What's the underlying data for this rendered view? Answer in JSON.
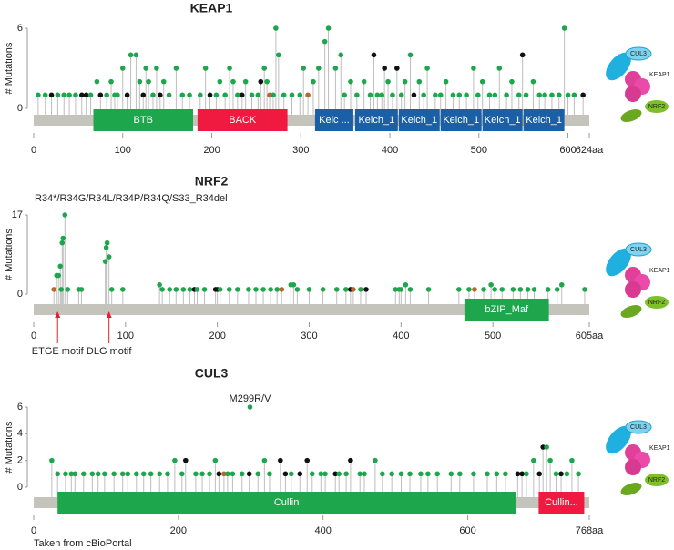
{
  "chart_data": [
    {
      "type": "lollipop",
      "title": "KEAP1",
      "ylabel": "# Mutations",
      "ylim": [
        0,
        6
      ],
      "yticks": [
        0,
        6
      ],
      "xlim": [
        0,
        624
      ],
      "xticks": [
        0,
        100,
        200,
        300,
        400,
        500,
        600,
        {
          "value": 624,
          "label": "624aa"
        }
      ],
      "domains": [
        {
          "name": "BTB",
          "start": 67,
          "end": 179,
          "color": "#1ea64c"
        },
        {
          "name": "BACK",
          "start": 184,
          "end": 285,
          "color": "#f0193f"
        },
        {
          "name": "Kelc ...",
          "start": 316,
          "end": 359,
          "color": "#1b5fa6"
        },
        {
          "name": "Kelch_1",
          "start": 361,
          "end": 409,
          "color": "#1b5fa6"
        },
        {
          "name": "Kelch_1",
          "start": 410,
          "end": 456,
          "color": "#1b5fa6"
        },
        {
          "name": "Kelch_1",
          "start": 457,
          "end": 503,
          "color": "#1b5fa6"
        },
        {
          "name": "Kelch_1",
          "start": 504,
          "end": 549,
          "color": "#1b5fa6"
        },
        {
          "name": "Kelch_1",
          "start": 550,
          "end": 596,
          "color": "#1b5fa6"
        }
      ],
      "x": [
        5,
        13,
        20,
        27,
        34,
        40,
        47,
        54,
        59,
        64,
        71,
        75,
        82,
        87,
        91,
        94,
        100,
        105,
        109,
        115,
        119,
        123,
        126,
        129,
        134,
        138,
        142,
        146,
        152,
        160,
        167,
        175,
        187,
        193,
        198,
        205,
        209,
        215,
        220,
        224,
        229,
        234,
        238,
        245,
        252,
        255,
        259,
        262,
        265,
        269,
        272,
        275,
        281,
        290,
        299,
        303,
        308,
        314,
        320,
        327,
        331,
        339,
        345,
        349,
        356,
        363,
        371,
        378,
        382,
        386,
        391,
        394,
        398,
        403,
        408,
        413,
        417,
        423,
        427,
        433,
        438,
        442,
        451,
        457,
        463,
        471,
        478,
        486,
        494,
        499,
        504,
        512,
        518,
        523,
        531,
        537,
        545,
        549,
        553,
        561,
        568,
        574,
        582,
        590,
        596,
        600,
        607,
        617
      ],
      "values": [
        1,
        1,
        1,
        1,
        1,
        1,
        1,
        1,
        1,
        1,
        2,
        1,
        1,
        2,
        1,
        1,
        3,
        1,
        4,
        4,
        2,
        1,
        3,
        2,
        1,
        3,
        1,
        2,
        1,
        3,
        1,
        1,
        1,
        3,
        1,
        1,
        2,
        1,
        3,
        2,
        1,
        1,
        2,
        1,
        1,
        2,
        3,
        2,
        1,
        1,
        6,
        4,
        1,
        1,
        1,
        3,
        1,
        2,
        3,
        5,
        6,
        3,
        4,
        1,
        2,
        1,
        2,
        1,
        4,
        1,
        1,
        3,
        2,
        1,
        3,
        1,
        2,
        4,
        1,
        2,
        1,
        3,
        1,
        1,
        2,
        1,
        1,
        1,
        3,
        1,
        2,
        1,
        1,
        3,
        1,
        2,
        1,
        4,
        1,
        2,
        1,
        1,
        1,
        1,
        6,
        1,
        1,
        1
      ],
      "colors": [
        "#1ea64c",
        "#1ea64c",
        "#111111",
        "#1ea64c",
        "#1ea64c",
        "#1ea64c",
        "#1ea64c",
        "#111111",
        "#111111",
        "#1ea64c",
        "#1ea64c",
        "#111111",
        "#1ea64c",
        "#1ea64c",
        "#1ea64c",
        "#1ea64c",
        "#1ea64c",
        "#111111",
        "#1ea64c",
        "#1ea64c",
        "#1ea64c",
        "#111111",
        "#1ea64c",
        "#1ea64c",
        "#1ea64c",
        "#1ea64c",
        "#111111",
        "#1ea64c",
        "#1ea64c",
        "#1ea64c",
        "#1ea64c",
        "#1ea64c",
        "#1ea64c",
        "#1ea64c",
        "#111111",
        "#1ea64c",
        "#1ea64c",
        "#1ea64c",
        "#1ea64c",
        "#1ea64c",
        "#1ea64c",
        "#111111",
        "#1ea64c",
        "#1ea64c",
        "#1ea64c",
        "#111111",
        "#1ea64c",
        "#1ea64c",
        "#b8662a",
        "#1ea64c",
        "#1ea64c",
        "#1ea64c",
        "#1ea64c",
        "#1ea64c",
        "#1ea64c",
        "#1ea64c",
        "#b8662a",
        "#1ea64c",
        "#1ea64c",
        "#1ea64c",
        "#1ea64c",
        "#1ea64c",
        "#1ea64c",
        "#1ea64c",
        "#1ea64c",
        "#1ea64c",
        "#1ea64c",
        "#1ea64c",
        "#111111",
        "#1ea64c",
        "#1ea64c",
        "#111111",
        "#1ea64c",
        "#1ea64c",
        "#111111",
        "#1ea64c",
        "#1ea64c",
        "#1ea64c",
        "#111111",
        "#1ea64c",
        "#1ea64c",
        "#1ea64c",
        "#1ea64c",
        "#1ea64c",
        "#1ea64c",
        "#1ea64c",
        "#1ea64c",
        "#1ea64c",
        "#1ea64c",
        "#1ea64c",
        "#1ea64c",
        "#1ea64c",
        "#1ea64c",
        "#1ea64c",
        "#1ea64c",
        "#1ea64c",
        "#1ea64c",
        "#111111",
        "#1ea64c",
        "#1ea64c",
        "#1ea64c",
        "#1ea64c",
        "#1ea64c",
        "#1ea64c",
        "#1ea64c",
        "#1ea64c",
        "#1ea64c",
        "#111111"
      ],
      "icon_labels": [
        "CUL3",
        "KEAP1",
        "NRF2"
      ]
    },
    {
      "type": "lollipop",
      "title": "NRF2",
      "ylabel": "# Mutations",
      "ylim": [
        0,
        17
      ],
      "yticks": [
        0,
        17
      ],
      "xlim": [
        0,
        605
      ],
      "xticks": [
        0,
        100,
        200,
        300,
        400,
        500,
        {
          "value": 605,
          "label": "605aa"
        }
      ],
      "annotation": "R34*/R34G/R34L/R34P/R34Q/S33_R34del",
      "motifs": [
        {
          "text": "ETGE motif",
          "x": 26
        },
        {
          "text": "DLG motif",
          "x": 82
        }
      ],
      "domains": [
        {
          "name": "bZIP_Maf",
          "start": 469,
          "end": 561,
          "color": "#1ea64c"
        }
      ],
      "x": [
        22,
        25,
        27,
        29,
        30,
        31,
        32,
        34,
        37,
        49,
        52,
        78,
        79,
        80,
        82,
        85,
        97,
        137,
        140,
        148,
        155,
        163,
        170,
        175,
        178,
        186,
        198,
        200,
        203,
        213,
        222,
        234,
        242,
        250,
        258,
        265,
        270,
        280,
        283,
        287,
        300,
        315,
        330,
        340,
        345,
        348,
        356,
        362,
        394,
        398,
        400,
        405,
        410,
        430,
        463,
        474,
        480,
        490,
        498,
        502,
        510,
        522,
        530,
        538,
        545,
        560,
        570,
        575,
        600
      ],
      "values": [
        1,
        4,
        4,
        6,
        1,
        11,
        12,
        17,
        1,
        1,
        1,
        7,
        10,
        11,
        8,
        1,
        1,
        2,
        1,
        1,
        1,
        1,
        1,
        1,
        1,
        1,
        1,
        1,
        1,
        1,
        1,
        1,
        1,
        1,
        1,
        1,
        1,
        2,
        2,
        1,
        1,
        1,
        1,
        1,
        1,
        1,
        1,
        1,
        1,
        1,
        1,
        2,
        1,
        1,
        1,
        1,
        1,
        1,
        2,
        1,
        1,
        1,
        1,
        1,
        1,
        1,
        1,
        2,
        1
      ],
      "colors": [
        "#b8662a",
        "#1ea64c",
        "#1ea64c",
        "#1ea64c",
        "#1ea64c",
        "#1ea64c",
        "#1ea64c",
        "#1ea64c",
        "#1ea64c",
        "#1ea64c",
        "#1ea64c",
        "#1ea64c",
        "#1ea64c",
        "#1ea64c",
        "#1ea64c",
        "#1ea64c",
        "#1ea64c",
        "#1ea64c",
        "#1ea64c",
        "#1ea64c",
        "#1ea64c",
        "#1ea64c",
        "#1ea64c",
        "#111111",
        "#1ea64c",
        "#1ea64c",
        "#111111",
        "#111111",
        "#1ea64c",
        "#1ea64c",
        "#1ea64c",
        "#1ea64c",
        "#1ea64c",
        "#1ea64c",
        "#1ea64c",
        "#1ea64c",
        "#b8662a",
        "#1ea64c",
        "#1ea64c",
        "#1ea64c",
        "#1ea64c",
        "#1ea64c",
        "#1ea64c",
        "#1ea64c",
        "#111111",
        "#b8662a",
        "#1ea64c",
        "#111111",
        "#1ea64c",
        "#1ea64c",
        "#1ea64c",
        "#1ea64c",
        "#1ea64c",
        "#1ea64c",
        "#1ea64c",
        "#1ea64c",
        "#b8662a",
        "#1ea64c",
        "#1ea64c",
        "#1ea64c",
        "#1ea64c",
        "#1ea64c",
        "#1ea64c",
        "#1ea64c",
        "#1ea64c",
        "#1ea64c",
        "#1ea64c",
        "#1ea64c",
        "#1ea64c"
      ],
      "icon_labels": [
        "CUL3",
        "KEAP1",
        "NRF2"
      ]
    },
    {
      "type": "lollipop",
      "title": "CUL3",
      "ylabel": "# Mutations",
      "ylim": [
        0,
        6
      ],
      "yticks": [
        0,
        2,
        4,
        6
      ],
      "xlim": [
        0,
        768
      ],
      "xticks": [
        0,
        200,
        400,
        600,
        {
          "value": 768,
          "label": "768aa"
        }
      ],
      "callout": {
        "text": "M299R/V",
        "x": 299
      },
      "domains": [
        {
          "name": "Cullin",
          "start": 33,
          "end": 666,
          "color": "#1ea64c"
        },
        {
          "name": "Cullin...",
          "start": 698,
          "end": 761,
          "color": "#f0193f"
        }
      ],
      "x": [
        25,
        33,
        44,
        52,
        57,
        69,
        81,
        89,
        98,
        111,
        123,
        130,
        142,
        152,
        162,
        174,
        185,
        195,
        205,
        210,
        224,
        233,
        243,
        251,
        256,
        263,
        268,
        275,
        288,
        298,
        299,
        310,
        319,
        326,
        341,
        348,
        356,
        368,
        378,
        385,
        397,
        403,
        417,
        422,
        432,
        438,
        451,
        457,
        472,
        482,
        495,
        508,
        520,
        535,
        545,
        558,
        577,
        589,
        608,
        627,
        640,
        652,
        669,
        675,
        681,
        691,
        699,
        704,
        709,
        714,
        722,
        729,
        737,
        744,
        753
      ],
      "values": [
        2,
        1,
        1,
        1,
        1,
        1,
        1,
        1,
        1,
        1,
        1,
        1,
        1,
        1,
        1,
        1,
        1,
        2,
        1,
        2,
        1,
        1,
        1,
        2,
        1,
        1,
        1,
        1,
        1,
        1,
        6,
        1,
        2,
        1,
        2,
        1,
        1,
        1,
        2,
        1,
        1,
        1,
        1,
        1,
        1,
        2,
        1,
        1,
        2,
        1,
        1,
        1,
        1,
        1,
        1,
        1,
        1,
        1,
        1,
        1,
        1,
        1,
        1,
        1,
        1,
        2,
        1,
        3,
        3,
        2,
        1,
        1,
        1,
        2,
        1
      ],
      "colors": [
        "#1ea64c",
        "#1ea64c",
        "#1ea64c",
        "#1ea64c",
        "#1ea64c",
        "#1ea64c",
        "#1ea64c",
        "#1ea64c",
        "#1ea64c",
        "#1ea64c",
        "#1ea64c",
        "#1ea64c",
        "#1ea64c",
        "#1ea64c",
        "#1ea64c",
        "#1ea64c",
        "#1ea64c",
        "#1ea64c",
        "#1ea64c",
        "#111111",
        "#1ea64c",
        "#1ea64c",
        "#1ea64c",
        "#1ea64c",
        "#111111",
        "#b8662a",
        "#1ea64c",
        "#1ea64c",
        "#1ea64c",
        "#111111",
        "#1ea64c",
        "#1ea64c",
        "#1ea64c",
        "#1ea64c",
        "#111111",
        "#111111",
        "#1ea64c",
        "#111111",
        "#111111",
        "#1ea64c",
        "#1ea64c",
        "#1ea64c",
        "#111111",
        "#1ea64c",
        "#1ea64c",
        "#111111",
        "#1ea64c",
        "#1ea64c",
        "#1ea64c",
        "#1ea64c",
        "#1ea64c",
        "#1ea64c",
        "#1ea64c",
        "#1ea64c",
        "#1ea64c",
        "#1ea64c",
        "#1ea64c",
        "#1ea64c",
        "#1ea64c",
        "#1ea64c",
        "#1ea64c",
        "#1ea64c",
        "#111111",
        "#111111",
        "#1ea64c",
        "#1ea64c",
        "#111111",
        "#111111",
        "#1ea64c",
        "#1ea64c",
        "#1ea64c",
        "#111111",
        "#1ea64c",
        "#1ea64c",
        "#1ea64c"
      ],
      "icon_labels": [
        "CUL3",
        "KEAP1",
        "NRF2"
      ]
    }
  ],
  "footer": "Taken from cBioPortal"
}
